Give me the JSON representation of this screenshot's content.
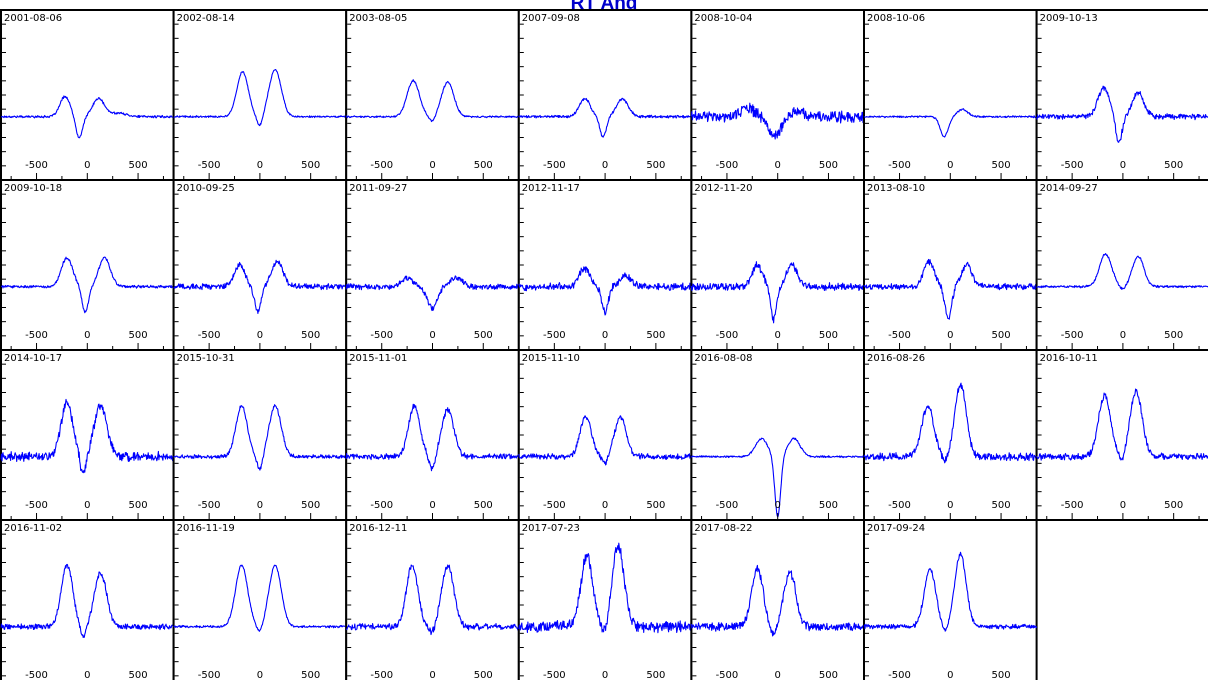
{
  "chart_data": {
    "type": "line",
    "title": "RT And",
    "x_ticks": [
      -500,
      0,
      500
    ],
    "xlim": [
      -850,
      850
    ],
    "ylim": [
      -0.6,
      1.2
    ],
    "line_color": "#0000ff",
    "grid": false,
    "panels": [
      {
        "date": "2001-08-06",
        "peaks": [
          {
            "c": -220,
            "w": 70,
            "a": 0.28
          },
          {
            "c": -80,
            "w": 45,
            "a": -0.3
          },
          {
            "c": 110,
            "w": 80,
            "a": 0.25
          },
          {
            "c": 300,
            "w": 120,
            "a": 0.05
          }
        ],
        "noise": 0.012
      },
      {
        "date": "2002-08-14",
        "peaks": [
          {
            "c": -170,
            "w": 80,
            "a": 0.62
          },
          {
            "c": 150,
            "w": 85,
            "a": 0.65
          },
          {
            "c": 0,
            "w": 40,
            "a": -0.15
          }
        ],
        "noise": 0.01
      },
      {
        "date": "2003-08-05",
        "peaks": [
          {
            "c": -190,
            "w": 85,
            "a": 0.5
          },
          {
            "c": 150,
            "w": 85,
            "a": 0.48
          },
          {
            "c": 0,
            "w": 40,
            "a": -0.08
          }
        ],
        "noise": 0.01
      },
      {
        "date": "2007-09-08",
        "peaks": [
          {
            "c": -200,
            "w": 75,
            "a": 0.25
          },
          {
            "c": -20,
            "w": 45,
            "a": -0.28
          },
          {
            "c": 170,
            "w": 80,
            "a": 0.25
          }
        ],
        "noise": 0.015
      },
      {
        "date": "2008-10-04",
        "peaks": [
          {
            "c": -300,
            "w": 90,
            "a": 0.12
          },
          {
            "c": -30,
            "w": 80,
            "a": -0.28
          },
          {
            "c": 200,
            "w": 90,
            "a": 0.08
          }
        ],
        "noise": 0.06
      },
      {
        "date": "2008-10-06",
        "peaks": [
          {
            "c": -60,
            "w": 55,
            "a": -0.28
          },
          {
            "c": 120,
            "w": 70,
            "a": 0.1
          }
        ],
        "noise": 0.01
      },
      {
        "date": "2009-10-13",
        "peaks": [
          {
            "c": -190,
            "w": 80,
            "a": 0.4
          },
          {
            "c": -40,
            "w": 45,
            "a": -0.35
          },
          {
            "c": 150,
            "w": 80,
            "a": 0.33
          }
        ],
        "noise": 0.03
      },
      {
        "date": "2009-10-18",
        "peaks": [
          {
            "c": -200,
            "w": 80,
            "a": 0.4
          },
          {
            "c": -20,
            "w": 45,
            "a": -0.35
          },
          {
            "c": 170,
            "w": 80,
            "a": 0.4
          }
        ],
        "noise": 0.015
      },
      {
        "date": "2010-09-25",
        "peaks": [
          {
            "c": -200,
            "w": 75,
            "a": 0.3
          },
          {
            "c": -20,
            "w": 45,
            "a": -0.35
          },
          {
            "c": 170,
            "w": 80,
            "a": 0.35
          }
        ],
        "noise": 0.03
      },
      {
        "date": "2011-09-27",
        "peaks": [
          {
            "c": -250,
            "w": 80,
            "a": 0.12
          },
          {
            "c": 0,
            "w": 70,
            "a": -0.3
          },
          {
            "c": 230,
            "w": 90,
            "a": 0.12
          }
        ],
        "noise": 0.03
      },
      {
        "date": "2012-11-17",
        "peaks": [
          {
            "c": -200,
            "w": 75,
            "a": 0.25
          },
          {
            "c": 0,
            "w": 45,
            "a": -0.35
          },
          {
            "c": 200,
            "w": 80,
            "a": 0.15
          }
        ],
        "noise": 0.04
      },
      {
        "date": "2012-11-20",
        "peaks": [
          {
            "c": -200,
            "w": 70,
            "a": 0.3
          },
          {
            "c": -40,
            "w": 40,
            "a": -0.45
          },
          {
            "c": 140,
            "w": 75,
            "a": 0.3
          }
        ],
        "noise": 0.04
      },
      {
        "date": "2013-08-10",
        "peaks": [
          {
            "c": -210,
            "w": 75,
            "a": 0.35
          },
          {
            "c": -20,
            "w": 45,
            "a": -0.45
          },
          {
            "c": 160,
            "w": 75,
            "a": 0.3
          }
        ],
        "noise": 0.035
      },
      {
        "date": "2014-09-27",
        "peaks": [
          {
            "c": -170,
            "w": 85,
            "a": 0.45
          },
          {
            "c": 0,
            "w": 40,
            "a": -0.05
          },
          {
            "c": 150,
            "w": 80,
            "a": 0.42
          }
        ],
        "noise": 0.012
      },
      {
        "date": "2014-10-17",
        "peaks": [
          {
            "c": -200,
            "w": 80,
            "a": 0.75
          },
          {
            "c": -40,
            "w": 40,
            "a": -0.25
          },
          {
            "c": 130,
            "w": 90,
            "a": 0.7
          }
        ],
        "noise": 0.05
      },
      {
        "date": "2015-10-31",
        "peaks": [
          {
            "c": -180,
            "w": 80,
            "a": 0.7
          },
          {
            "c": 0,
            "w": 40,
            "a": -0.2
          },
          {
            "c": 150,
            "w": 85,
            "a": 0.7
          }
        ],
        "noise": 0.02
      },
      {
        "date": "2015-11-01",
        "peaks": [
          {
            "c": -180,
            "w": 80,
            "a": 0.7
          },
          {
            "c": 0,
            "w": 40,
            "a": -0.2
          },
          {
            "c": 150,
            "w": 85,
            "a": 0.65
          }
        ],
        "noise": 0.03
      },
      {
        "date": "2015-11-10",
        "peaks": [
          {
            "c": -190,
            "w": 80,
            "a": 0.55
          },
          {
            "c": 0,
            "w": 40,
            "a": -0.1
          },
          {
            "c": 150,
            "w": 80,
            "a": 0.55
          }
        ],
        "noise": 0.03
      },
      {
        "date": "2016-08-08",
        "peaks": [
          {
            "c": -160,
            "w": 85,
            "a": 0.25
          },
          {
            "c": 0,
            "w": 40,
            "a": -0.85
          },
          {
            "c": 160,
            "w": 85,
            "a": 0.25
          }
        ],
        "noise": 0.01
      },
      {
        "date": "2016-08-26",
        "peaks": [
          {
            "c": -220,
            "w": 85,
            "a": 0.7
          },
          {
            "c": -50,
            "w": 40,
            "a": -0.1
          },
          {
            "c": 100,
            "w": 80,
            "a": 1.0
          }
        ],
        "noise": 0.04
      },
      {
        "date": "2016-10-11",
        "peaks": [
          {
            "c": -180,
            "w": 85,
            "a": 0.85
          },
          {
            "c": 0,
            "w": 40,
            "a": -0.1
          },
          {
            "c": 130,
            "w": 85,
            "a": 0.9
          }
        ],
        "noise": 0.035
      },
      {
        "date": "2016-11-02",
        "peaks": [
          {
            "c": -200,
            "w": 80,
            "a": 0.85
          },
          {
            "c": -40,
            "w": 40,
            "a": -0.15
          },
          {
            "c": 130,
            "w": 85,
            "a": 0.75
          }
        ],
        "noise": 0.03
      },
      {
        "date": "2016-11-19",
        "peaks": [
          {
            "c": -180,
            "w": 85,
            "a": 0.85
          },
          {
            "c": 0,
            "w": 40,
            "a": -0.1
          },
          {
            "c": 150,
            "w": 85,
            "a": 0.85
          }
        ],
        "noise": 0.012
      },
      {
        "date": "2016-12-11",
        "peaks": [
          {
            "c": -200,
            "w": 80,
            "a": 0.85
          },
          {
            "c": 0,
            "w": 40,
            "a": -0.1
          },
          {
            "c": 150,
            "w": 85,
            "a": 0.85
          }
        ],
        "noise": 0.035
      },
      {
        "date": "2017-07-23",
        "peaks": [
          {
            "c": -180,
            "w": 80,
            "a": 1.0
          },
          {
            "c": 0,
            "w": 40,
            "a": -0.15
          },
          {
            "c": 130,
            "w": 85,
            "a": 1.1
          }
        ],
        "noise": 0.06
      },
      {
        "date": "2017-08-22",
        "peaks": [
          {
            "c": -200,
            "w": 80,
            "a": 0.8
          },
          {
            "c": -40,
            "w": 40,
            "a": -0.15
          },
          {
            "c": 120,
            "w": 85,
            "a": 0.75
          }
        ],
        "noise": 0.045
      },
      {
        "date": "2017-09-24",
        "peaks": [
          {
            "c": -200,
            "w": 80,
            "a": 0.8
          },
          {
            "c": -50,
            "w": 40,
            "a": -0.1
          },
          {
            "c": 100,
            "w": 80,
            "a": 1.0
          }
        ],
        "noise": 0.025
      }
    ]
  }
}
